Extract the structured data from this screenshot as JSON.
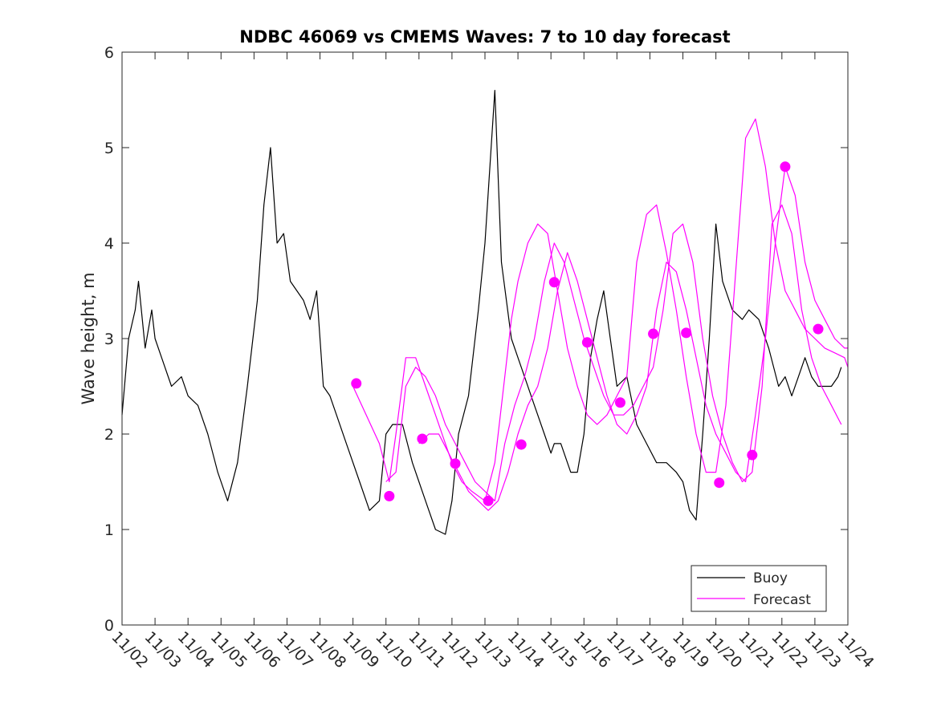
{
  "chart_data": {
    "type": "line",
    "title": "NDBC 46069 vs CMEMS Waves: 7 to 10 day forecast",
    "xlabel": "",
    "ylabel": "Wave height, m",
    "xlim": [
      0,
      22
    ],
    "ylim": [
      0,
      6
    ],
    "x_tick_labels": [
      "11/02",
      "11/03",
      "11/04",
      "11/05",
      "11/06",
      "11/07",
      "11/08",
      "11/09",
      "11/10",
      "11/11",
      "11/12",
      "11/13",
      "11/14",
      "11/15",
      "11/16",
      "11/17",
      "11/18",
      "11/19",
      "11/20",
      "11/21",
      "11/22",
      "11/23",
      "11/24"
    ],
    "y_ticks": [
      0,
      1,
      2,
      3,
      4,
      5,
      6
    ],
    "legend": {
      "position": "bottom-right",
      "entries": [
        "Buoy",
        "Forecast"
      ]
    },
    "colors": {
      "buoy": "#000000",
      "forecast": "#ff00ff"
    },
    "series": [
      {
        "name": "Buoy",
        "x": [
          0,
          0.2,
          0.4,
          0.5,
          0.7,
          0.9,
          1,
          1.2,
          1.5,
          1.8,
          2,
          2.3,
          2.6,
          2.9,
          3.2,
          3.5,
          3.8,
          4.1,
          4.3,
          4.5,
          4.7,
          4.9,
          5.1,
          5.3,
          5.5,
          5.7,
          5.9,
          6.1,
          6.3,
          6.5,
          6.8,
          7.2,
          7.5,
          7.8,
          8,
          8.2,
          8.5,
          8.8,
          9,
          9.1,
          9.3,
          9.5,
          9.8,
          10,
          10.2,
          10.5,
          10.8,
          11,
          11.3,
          11.5,
          11.8,
          12,
          12.2,
          12.5,
          12.8,
          13,
          13.1,
          13.3,
          13.5,
          13.6,
          13.8,
          14,
          14.2,
          14.4,
          14.6,
          14.8,
          15,
          15.3,
          15.6,
          15.9,
          16.2,
          16.5,
          16.8,
          17,
          17.2,
          17.4,
          17.6,
          17.8,
          18,
          18.2,
          18.5,
          18.8,
          19,
          19.3,
          19.6,
          19.9,
          20.1,
          20.3,
          20.5,
          20.7,
          20.9,
          21.1,
          21.3,
          21.5,
          21.7,
          21.8
        ],
        "values": [
          2.2,
          3.0,
          3.3,
          3.6,
          2.9,
          3.3,
          3.0,
          2.8,
          2.5,
          2.6,
          2.4,
          2.3,
          2.0,
          1.6,
          1.3,
          1.7,
          2.5,
          3.4,
          4.4,
          5.0,
          4.0,
          4.1,
          3.6,
          3.5,
          3.4,
          3.2,
          3.5,
          2.5,
          2.4,
          2.2,
          1.9,
          1.5,
          1.2,
          1.3,
          2.0,
          2.1,
          2.1,
          1.7,
          1.5,
          1.4,
          1.2,
          1.0,
          0.95,
          1.3,
          2.0,
          2.4,
          3.3,
          4.0,
          5.6,
          3.8,
          3.0,
          2.8,
          2.6,
          2.3,
          2.0,
          1.8,
          1.9,
          1.9,
          1.7,
          1.6,
          1.6,
          2.0,
          2.8,
          3.2,
          3.5,
          3.0,
          2.5,
          2.6,
          2.1,
          1.9,
          1.7,
          1.7,
          1.6,
          1.5,
          1.2,
          1.1,
          2.0,
          3.0,
          4.2,
          3.6,
          3.3,
          3.2,
          3.3,
          3.2,
          2.9,
          2.5,
          2.6,
          2.4,
          2.6,
          2.8,
          2.6,
          2.5,
          2.5,
          2.5,
          2.6,
          2.7
        ]
      },
      {
        "name": "Forecast",
        "x": [
          7.0,
          7.4,
          7.8,
          8.1,
          8.3,
          8.6,
          8.9,
          9.2,
          9.5,
          9.8,
          10.0,
          10.3,
          10.6,
          11.0,
          11.3,
          11.6,
          11.8,
          12.0,
          12.3,
          12.6,
          12.9,
          13.2,
          13.5,
          13.8,
          14.1,
          14.4,
          14.7,
          15.0,
          15.3,
          15.6,
          15.9,
          16.2,
          16.5,
          16.8,
          17.1,
          17.4,
          17.7,
          18.0,
          18.3,
          18.6,
          18.9,
          19.2,
          19.5,
          19.8,
          20.1,
          20.4,
          20.7,
          21.0,
          21.3,
          21.6,
          21.9,
          22.0
        ],
        "values": [
          2.5,
          2.2,
          1.9,
          1.5,
          2.0,
          2.8,
          2.8,
          2.5,
          2.2,
          1.9,
          1.7,
          1.5,
          1.4,
          1.3,
          1.7,
          2.6,
          3.2,
          3.6,
          4.0,
          4.2,
          4.1,
          3.5,
          2.9,
          2.5,
          2.2,
          2.1,
          2.2,
          2.4,
          2.6,
          3.8,
          4.3,
          4.4,
          3.9,
          3.3,
          2.6,
          2.0,
          1.6,
          1.6,
          2.3,
          3.7,
          5.1,
          5.3,
          4.8,
          4.0,
          3.5,
          3.3,
          3.1,
          3.0,
          2.9,
          2.85,
          2.8,
          2.7
        ]
      },
      {
        "name": "Forecast",
        "x": [
          8.0,
          8.3,
          8.6,
          8.9,
          9.2,
          9.5,
          9.8,
          10.1,
          10.4,
          10.7,
          11.0,
          11.3,
          11.6,
          11.9,
          12.2,
          12.5,
          12.8,
          13.1,
          13.4,
          13.7,
          14.0,
          14.3,
          14.6,
          14.9,
          15.2,
          15.5,
          15.8,
          16.1,
          16.4,
          16.7,
          17.0,
          17.3,
          17.6,
          17.9,
          18.2,
          18.5,
          18.8,
          19.1,
          19.4,
          19.7,
          20.0,
          20.3,
          20.6,
          20.9,
          21.2,
          21.5,
          21.8
        ],
        "values": [
          1.5,
          1.6,
          2.5,
          2.7,
          2.6,
          2.4,
          2.1,
          1.9,
          1.7,
          1.5,
          1.4,
          1.3,
          1.9,
          2.3,
          2.6,
          3.0,
          3.6,
          4.0,
          3.8,
          3.4,
          3.0,
          2.7,
          2.4,
          2.2,
          2.2,
          2.3,
          2.5,
          2.7,
          3.3,
          4.1,
          4.2,
          3.8,
          3.0,
          2.4,
          2.0,
          1.7,
          1.5,
          1.6,
          2.5,
          4.2,
          4.4,
          4.1,
          3.3,
          2.8,
          2.5,
          2.3,
          2.1
        ]
      },
      {
        "name": "Forecast",
        "x": [
          9.0,
          9.3,
          9.6,
          9.9,
          10.2,
          10.5,
          10.8,
          11.1,
          11.4,
          11.7,
          12.0,
          12.3,
          12.6,
          12.9,
          13.2,
          13.5,
          13.8,
          14.1,
          14.4,
          14.7,
          15.0,
          15.3,
          15.6,
          15.9,
          16.2,
          16.5,
          16.8,
          17.1,
          17.4,
          17.7,
          18.0,
          18.3,
          18.6,
          18.9,
          19.2,
          19.5,
          19.8,
          20.1,
          20.4,
          20.7,
          21.0,
          21.3,
          21.6,
          21.9,
          22.0
        ],
        "values": [
          1.9,
          2.0,
          2.0,
          1.8,
          1.6,
          1.4,
          1.3,
          1.2,
          1.3,
          1.6,
          2.0,
          2.3,
          2.5,
          2.9,
          3.5,
          3.9,
          3.6,
          3.2,
          2.8,
          2.4,
          2.1,
          2.0,
          2.2,
          2.5,
          3.3,
          3.8,
          3.7,
          3.3,
          2.8,
          2.3,
          2.0,
          1.8,
          1.6,
          1.5,
          2.2,
          3.0,
          4.0,
          4.8,
          4.5,
          3.8,
          3.4,
          3.2,
          3.0,
          2.9,
          2.9
        ]
      }
    ],
    "markers": {
      "name": "Forecast",
      "x": [
        7.1,
        8.1,
        9.1,
        10.1,
        11.1,
        12.1,
        13.1,
        14.1,
        15.1,
        16.1,
        17.1,
        18.1,
        19.1,
        20.1,
        21.1
      ],
      "values": [
        2.53,
        1.35,
        1.95,
        1.69,
        1.3,
        1.89,
        3.59,
        2.96,
        2.33,
        3.05,
        3.06,
        1.49,
        1.78,
        4.8,
        3.1
      ]
    }
  }
}
